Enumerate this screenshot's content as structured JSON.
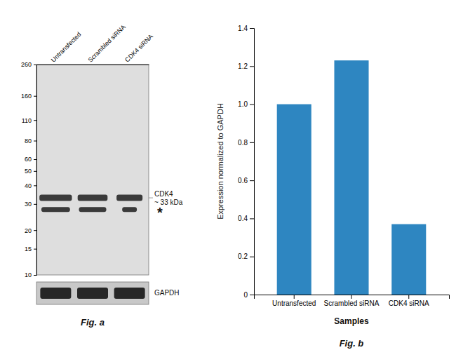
{
  "chart_data": [
    {
      "type": "blot",
      "title": "Fig. a",
      "categories": [
        "Untransfected",
        "Scrambled siRNA",
        "CDK4 siRNA"
      ],
      "series": [
        {
          "name": "CDK4",
          "values": [
            33,
            33,
            33
          ]
        },
        {
          "name": "*",
          "values": [
            27.5,
            27.5,
            27.5
          ]
        }
      ],
      "annotations": [
        "~ 33 kDa",
        "GAPDH"
      ],
      "log": "y",
      "ylim": [
        10,
        260
      ],
      "yticks": [
        260,
        160,
        110,
        80,
        60,
        50,
        40,
        30,
        20,
        15,
        10
      ]
    },
    {
      "type": "bar",
      "title": "Fig. b",
      "categories": [
        "Untransfected",
        "Scrambled siRNA",
        "CDK4 siRNA"
      ],
      "values": [
        1.0,
        1.23,
        0.37
      ],
      "color": "#2E86C1",
      "xlabel": "Samples",
      "ylabel": "Expression normalized to GAPDH",
      "ylim": [
        0,
        1.4
      ],
      "yticks": [
        0,
        0.2,
        0.4,
        0.6,
        0.8,
        {
          "value": 1.0,
          "label": "1.0"
        },
        1.2,
        1.4
      ],
      "grid": false
    }
  ]
}
